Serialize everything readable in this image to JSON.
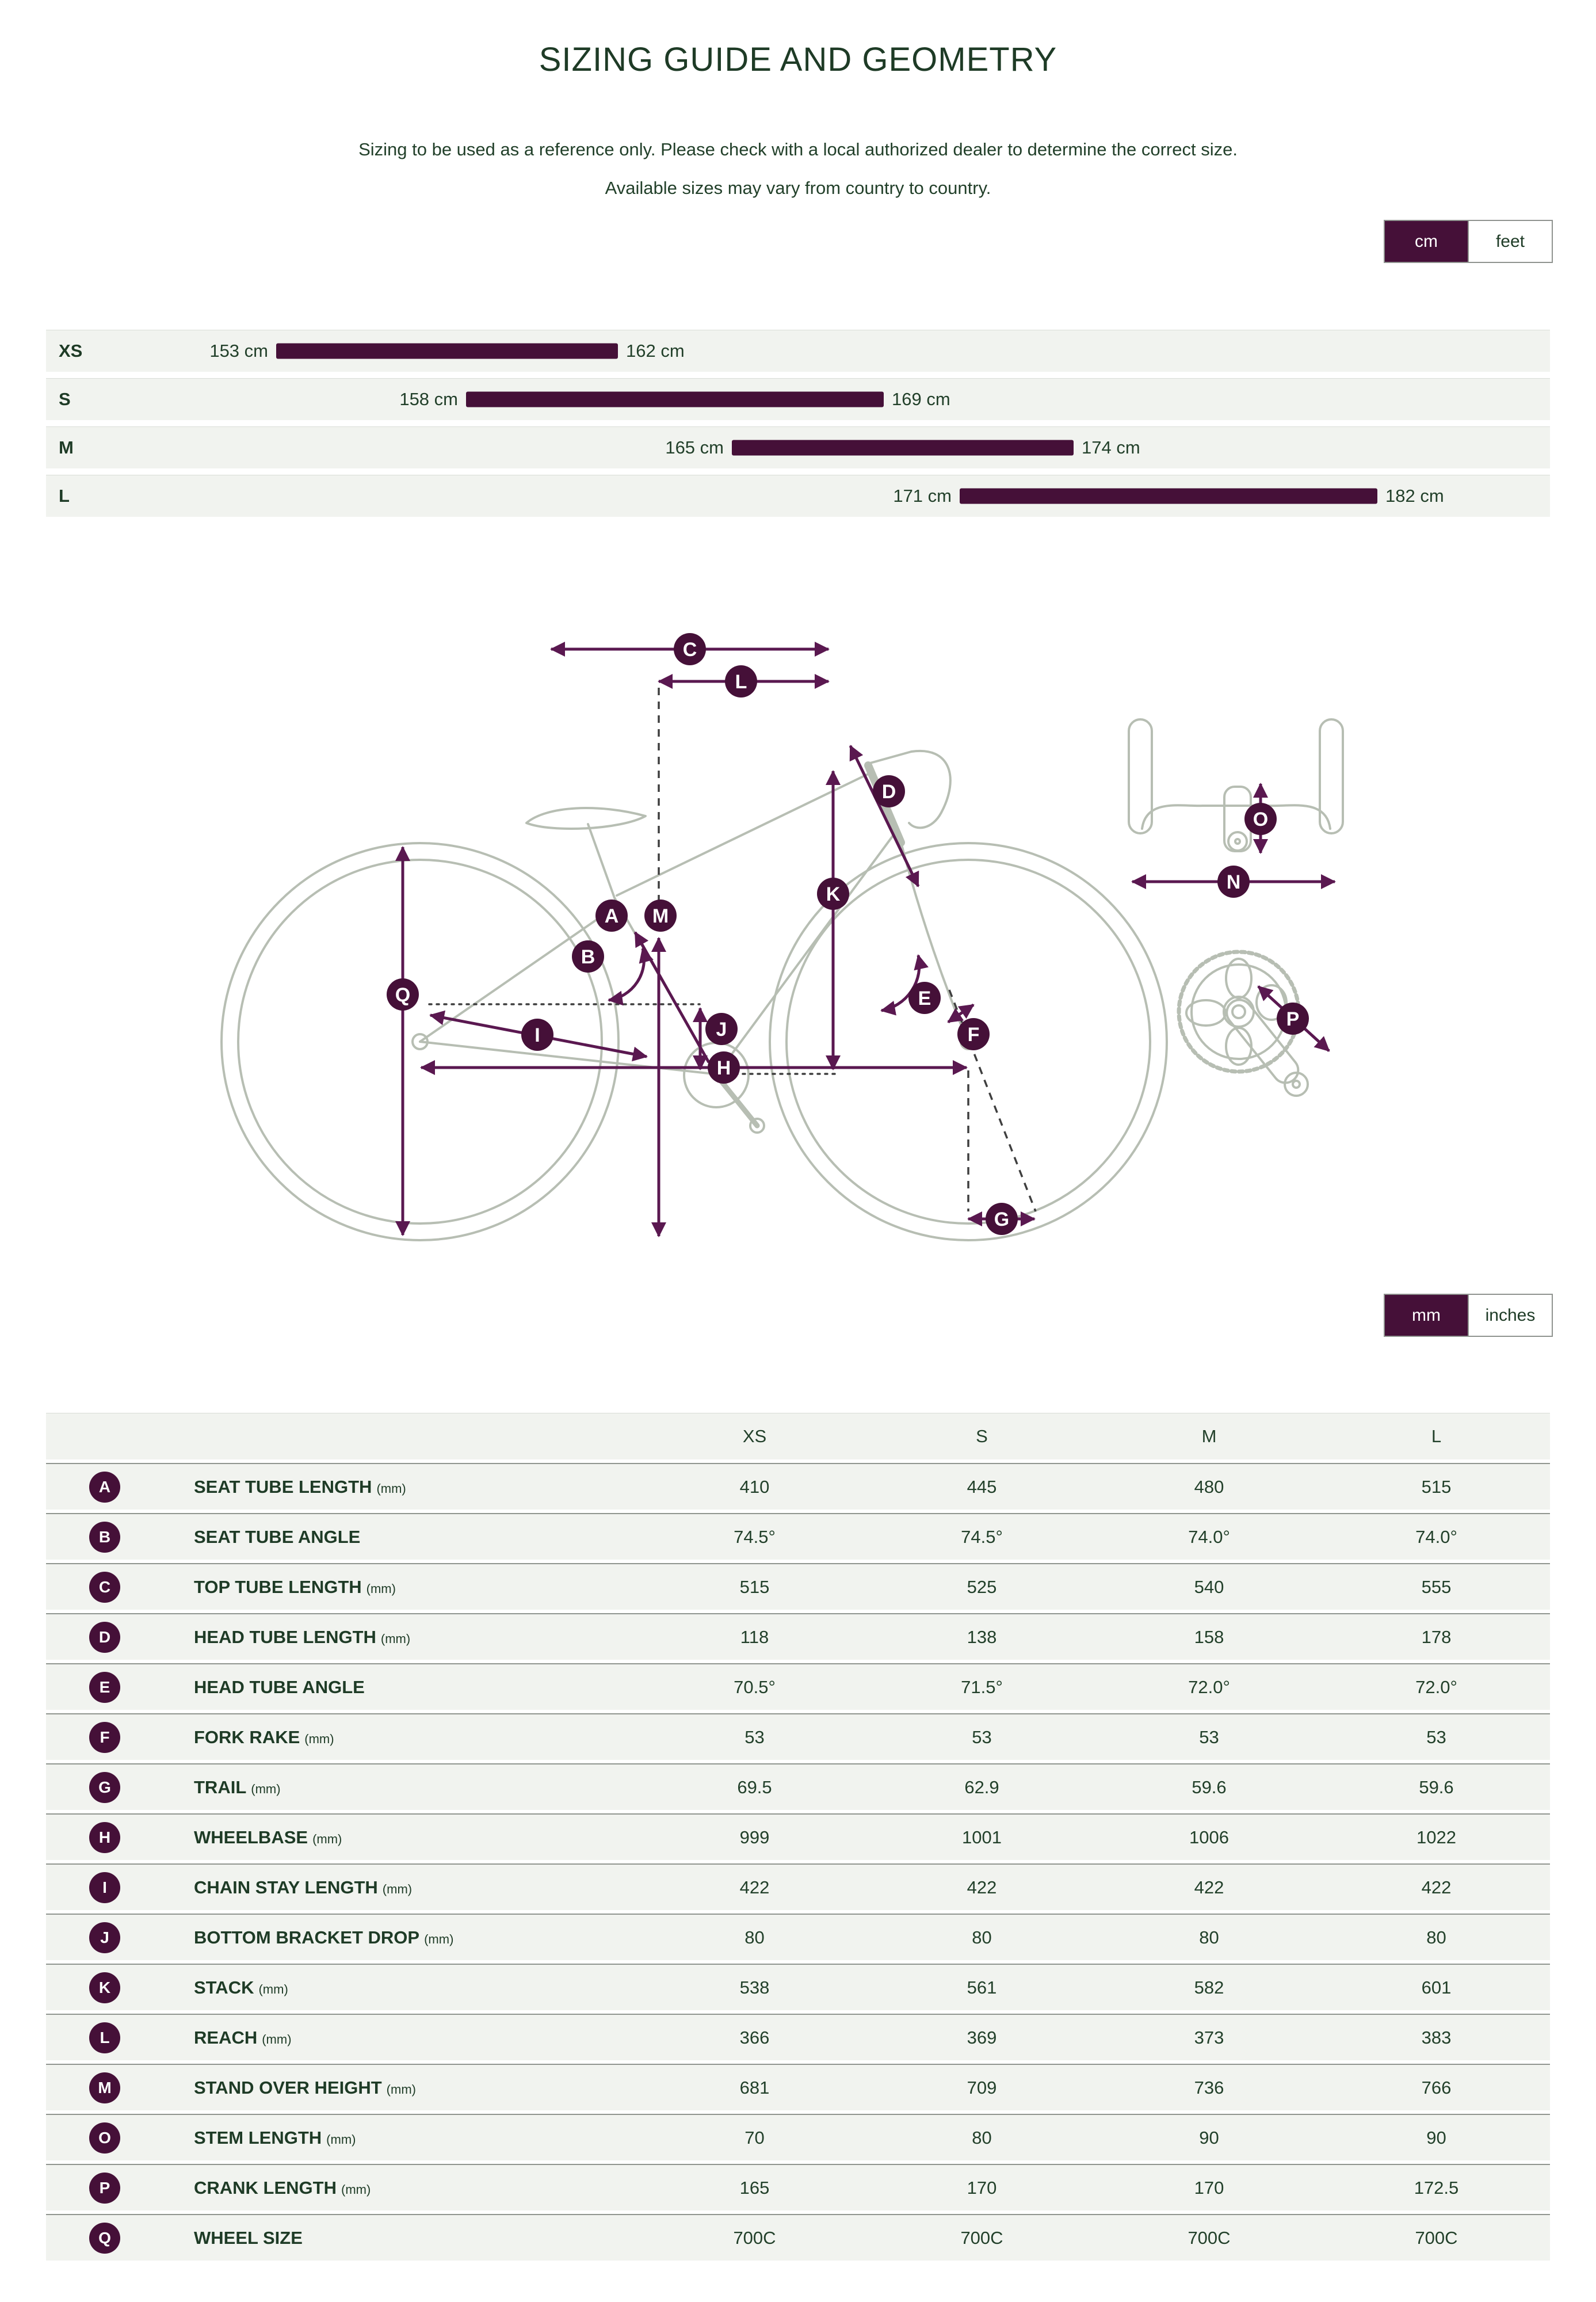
{
  "page": {
    "title": "SIZING GUIDE AND GEOMETRY",
    "subtitle_line1": "Sizing to be used as a reference only. Please check with a local authorized dealer to determine the correct size.",
    "subtitle_line2": "Available sizes may vary from country to country."
  },
  "colors": {
    "accent_plum": "#451038",
    "arrow_purple": "#5a1850",
    "text_green": "#1e3b26",
    "row_background": "#f1f3ef",
    "bike_outline": "#b7beb3"
  },
  "unit_toggles": {
    "height": {
      "options": [
        "cm",
        "feet"
      ],
      "selected": "cm"
    },
    "geometry": {
      "options": [
        "mm",
        "inches"
      ],
      "selected": "mm"
    }
  },
  "size_chart": {
    "unit": "cm",
    "rows": [
      {
        "size": "XS",
        "min": 153,
        "max": 162,
        "min_label": "153 cm",
        "max_label": "162 cm"
      },
      {
        "size": "S",
        "min": 158,
        "max": 169,
        "min_label": "158 cm",
        "max_label": "169 cm"
      },
      {
        "size": "M",
        "min": 165,
        "max": 174,
        "min_label": "165 cm",
        "max_label": "174 cm"
      },
      {
        "size": "L",
        "min": 171,
        "max": 182,
        "min_label": "171 cm",
        "max_label": "182 cm"
      }
    ]
  },
  "diagram": {
    "markers": [
      "C",
      "L",
      "D",
      "K",
      "A",
      "M",
      "B",
      "Q",
      "I",
      "J",
      "H",
      "E",
      "F",
      "G",
      "O",
      "N",
      "P"
    ]
  },
  "table": {
    "columns": [
      "XS",
      "S",
      "M",
      "L"
    ],
    "rows": [
      {
        "letter": "A",
        "label": "SEAT TUBE LENGTH",
        "unit": "(mm)",
        "values": [
          "410",
          "445",
          "480",
          "515"
        ]
      },
      {
        "letter": "B",
        "label": "SEAT TUBE ANGLE",
        "unit": "",
        "values": [
          "74.5°",
          "74.5°",
          "74.0°",
          "74.0°"
        ]
      },
      {
        "letter": "C",
        "label": "TOP TUBE LENGTH",
        "unit": "(mm)",
        "values": [
          "515",
          "525",
          "540",
          "555"
        ]
      },
      {
        "letter": "D",
        "label": "HEAD TUBE LENGTH",
        "unit": "(mm)",
        "values": [
          "118",
          "138",
          "158",
          "178"
        ]
      },
      {
        "letter": "E",
        "label": "HEAD TUBE ANGLE",
        "unit": "",
        "values": [
          "70.5°",
          "71.5°",
          "72.0°",
          "72.0°"
        ]
      },
      {
        "letter": "F",
        "label": "FORK RAKE",
        "unit": "(mm)",
        "values": [
          "53",
          "53",
          "53",
          "53"
        ]
      },
      {
        "letter": "G",
        "label": "TRAIL",
        "unit": "(mm)",
        "values": [
          "69.5",
          "62.9",
          "59.6",
          "59.6"
        ]
      },
      {
        "letter": "H",
        "label": "WHEELBASE",
        "unit": "(mm)",
        "values": [
          "999",
          "1001",
          "1006",
          "1022"
        ]
      },
      {
        "letter": "I",
        "label": "CHAIN STAY LENGTH",
        "unit": "(mm)",
        "values": [
          "422",
          "422",
          "422",
          "422"
        ]
      },
      {
        "letter": "J",
        "label": "BOTTOM BRACKET DROP",
        "unit": "(mm)",
        "values": [
          "80",
          "80",
          "80",
          "80"
        ]
      },
      {
        "letter": "K",
        "label": "STACK",
        "unit": "(mm)",
        "values": [
          "538",
          "561",
          "582",
          "601"
        ]
      },
      {
        "letter": "L",
        "label": "REACH",
        "unit": "(mm)",
        "values": [
          "366",
          "369",
          "373",
          "383"
        ]
      },
      {
        "letter": "M",
        "label": "STAND OVER HEIGHT",
        "unit": "(mm)",
        "values": [
          "681",
          "709",
          "736",
          "766"
        ]
      },
      {
        "letter": "O",
        "label": "STEM LENGTH",
        "unit": "(mm)",
        "values": [
          "70",
          "80",
          "90",
          "90"
        ]
      },
      {
        "letter": "P",
        "label": "CRANK LENGTH",
        "unit": "(mm)",
        "values": [
          "165",
          "170",
          "170",
          "172.5"
        ]
      },
      {
        "letter": "Q",
        "label": "WHEEL SIZE",
        "unit": "",
        "values": [
          "700C",
          "700C",
          "700C",
          "700C"
        ]
      }
    ]
  }
}
